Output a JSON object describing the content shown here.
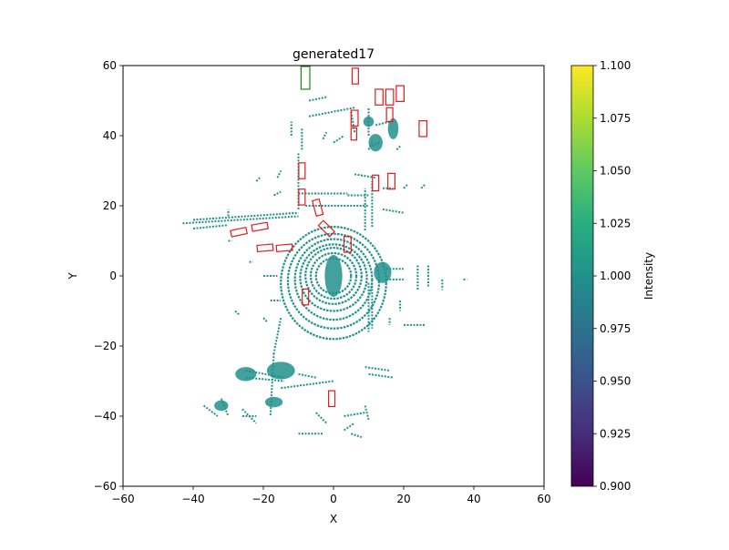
{
  "chart_data": {
    "type": "scatter",
    "title": "generated17",
    "xlabel": "X",
    "ylabel": "Y",
    "xlim": [
      -60,
      60
    ],
    "ylim": [
      -60,
      60
    ],
    "xticks": [
      -60,
      -40,
      -20,
      0,
      20,
      40,
      60
    ],
    "yticks": [
      -60,
      -40,
      -20,
      0,
      20,
      40,
      60
    ],
    "grid": false,
    "point_color": "#21918c",
    "colorbar": {
      "label": "Intensity",
      "range": [
        0.9,
        1.1
      ],
      "ticks": [
        "0.900",
        "0.925",
        "0.950",
        "0.975",
        "1.000",
        "1.025",
        "1.050",
        "1.075",
        "1.100"
      ],
      "colormap": "viridis"
    },
    "rings": [
      {
        "cx": 0,
        "cy": 0,
        "rx": 5,
        "ry": 5
      },
      {
        "cx": 0,
        "cy": 0,
        "rx": 6.5,
        "ry": 6.5
      },
      {
        "cx": 0,
        "cy": 0,
        "rx": 8,
        "ry": 8
      },
      {
        "cx": 0,
        "cy": -0.5,
        "rx": 9.5,
        "ry": 9.5
      },
      {
        "cx": 0,
        "cy": -1,
        "rx": 11,
        "ry": 11.5
      },
      {
        "cx": 0,
        "cy": -1.5,
        "rx": 13,
        "ry": 13.5
      },
      {
        "cx": 0,
        "cy": -2,
        "rx": 15,
        "ry": 16
      }
    ],
    "point_segments": [
      {
        "x1": -43,
        "y1": 15,
        "x2": -10,
        "y2": 17
      },
      {
        "x1": -40,
        "y1": 16,
        "x2": -10,
        "y2": 18
      },
      {
        "x1": -40,
        "y1": 13.5,
        "x2": -30,
        "y2": 14.5
      },
      {
        "x1": -30,
        "y1": 17,
        "x2": -30,
        "y2": 19
      },
      {
        "x1": -10,
        "y1": 19,
        "x2": -10,
        "y2": 35
      },
      {
        "x1": -9,
        "y1": 36,
        "x2": -9,
        "y2": 42
      },
      {
        "x1": -12,
        "y1": 40,
        "x2": -12,
        "y2": 44
      },
      {
        "x1": -7,
        "y1": 45.5,
        "x2": 6,
        "y2": 48
      },
      {
        "x1": -7,
        "y1": 50,
        "x2": -2,
        "y2": 51
      },
      {
        "x1": 4,
        "y1": 23,
        "x2": 10,
        "y2": 23
      },
      {
        "x1": -10,
        "y1": 23.5,
        "x2": 4,
        "y2": 23.5
      },
      {
        "x1": -8,
        "y1": 20,
        "x2": 10,
        "y2": 20
      },
      {
        "x1": 6,
        "y1": 29,
        "x2": 12,
        "y2": 28
      },
      {
        "x1": 9,
        "y1": 13,
        "x2": 9,
        "y2": 25
      },
      {
        "x1": 11,
        "y1": 14,
        "x2": 11,
        "y2": 27
      },
      {
        "x1": 10,
        "y1": 40,
        "x2": 10,
        "y2": 48
      },
      {
        "x1": 11,
        "y1": 37,
        "x2": 13,
        "y2": 38
      },
      {
        "x1": -15,
        "y1": -12,
        "x2": -17,
        "y2": -22
      },
      {
        "x1": -17,
        "y1": -22,
        "x2": -18,
        "y2": -40
      },
      {
        "x1": -25,
        "y1": -27,
        "x2": -14,
        "y2": -29
      },
      {
        "x1": -25,
        "y1": -29,
        "x2": -14,
        "y2": -30
      },
      {
        "x1": -26,
        "y1": -40,
        "x2": -22,
        "y2": -40
      },
      {
        "x1": -15,
        "y1": -32,
        "x2": 0,
        "y2": -30
      },
      {
        "x1": -10,
        "y1": -28,
        "x2": -5,
        "y2": -29
      },
      {
        "x1": 9,
        "y1": -26,
        "x2": 16,
        "y2": -27
      },
      {
        "x1": 10,
        "y1": -28,
        "x2": 17,
        "y2": -29
      },
      {
        "x1": 3,
        "y1": -40,
        "x2": 9,
        "y2": -39
      },
      {
        "x1": -5,
        "y1": -39,
        "x2": -2,
        "y2": -42
      },
      {
        "x1": 3,
        "y1": -44,
        "x2": 6,
        "y2": -42
      },
      {
        "x1": 9,
        "y1": -37,
        "x2": 10,
        "y2": -41
      },
      {
        "x1": -32,
        "y1": -35,
        "x2": -30,
        "y2": -40
      },
      {
        "x1": -26,
        "y1": -38,
        "x2": -22,
        "y2": -42
      },
      {
        "x1": -10,
        "y1": -45,
        "x2": -3,
        "y2": -45
      },
      {
        "x1": 5,
        "y1": -45,
        "x2": 8,
        "y2": -46
      },
      {
        "x1": -37,
        "y1": -37,
        "x2": -33,
        "y2": -40
      },
      {
        "x1": 10,
        "y1": -2,
        "x2": 10,
        "y2": -16
      },
      {
        "x1": 11,
        "y1": -1,
        "x2": 11,
        "y2": -15
      },
      {
        "x1": 15,
        "y1": 2,
        "x2": 20,
        "y2": 2
      },
      {
        "x1": 15,
        "y1": -1,
        "x2": 20,
        "y2": -1
      },
      {
        "x1": 19,
        "y1": -7,
        "x2": 19,
        "y2": -10
      },
      {
        "x1": 16,
        "y1": -12,
        "x2": 16,
        "y2": -14
      },
      {
        "x1": 20,
        "y1": -14,
        "x2": 26,
        "y2": -14
      },
      {
        "x1": 24,
        "y1": 3,
        "x2": 24,
        "y2": -4
      },
      {
        "x1": 27,
        "y1": 3,
        "x2": 27,
        "y2": -3
      },
      {
        "x1": 31,
        "y1": -1,
        "x2": 31,
        "y2": -4
      },
      {
        "x1": 37,
        "y1": -1,
        "x2": 38,
        "y2": -1
      },
      {
        "x1": 12,
        "y1": 43,
        "x2": 16,
        "y2": 44
      },
      {
        "x1": 10,
        "y1": 36,
        "x2": 11,
        "y2": 38
      },
      {
        "x1": 18,
        "y1": 36,
        "x2": 19,
        "y2": 37
      },
      {
        "x1": 20,
        "y1": 25,
        "x2": 21,
        "y2": 26
      },
      {
        "x1": 14,
        "y1": 25,
        "x2": 17,
        "y2": 25
      },
      {
        "x1": 25,
        "y1": 25,
        "x2": 26,
        "y2": 26
      },
      {
        "x1": 14,
        "y1": 19,
        "x2": 20,
        "y2": 18
      },
      {
        "x1": -30,
        "y1": 10,
        "x2": -29,
        "y2": 10
      },
      {
        "x1": -24,
        "y1": 4,
        "x2": -23,
        "y2": 4
      },
      {
        "x1": -20,
        "y1": 0,
        "x2": -16,
        "y2": 0
      },
      {
        "x1": -18,
        "y1": -7,
        "x2": -15,
        "y2": -7
      },
      {
        "x1": -28,
        "y1": -10,
        "x2": -27,
        "y2": -11
      },
      {
        "x1": -20,
        "y1": -12,
        "x2": -19,
        "y2": -13
      },
      {
        "x1": -17,
        "y1": 23,
        "x2": -15,
        "y2": 24
      },
      {
        "x1": -22,
        "y1": 27,
        "x2": -21,
        "y2": 28
      },
      {
        "x1": -16,
        "y1": 28,
        "x2": -15,
        "y2": 30
      },
      {
        "x1": 6,
        "y1": 41,
        "x2": 5,
        "y2": 47
      },
      {
        "x1": 0,
        "y1": 38,
        "x2": 3,
        "y2": 40
      },
      {
        "x1": -3,
        "y1": 39,
        "x2": -2,
        "y2": 41
      }
    ],
    "point_blobs": [
      {
        "x": 0,
        "y": 0,
        "rx": 2.5,
        "ry": 6
      },
      {
        "x": -15,
        "y": -27,
        "rx": 4,
        "ry": 2.5
      },
      {
        "x": -25,
        "y": -28,
        "rx": 3,
        "ry": 2
      },
      {
        "x": -32,
        "y": -37,
        "rx": 2,
        "ry": 1.5
      },
      {
        "x": -17,
        "y": -36,
        "rx": 2.5,
        "ry": 1.5
      },
      {
        "x": 14,
        "y": 1,
        "rx": 2.5,
        "ry": 3
      },
      {
        "x": 17,
        "y": 42,
        "rx": 1.5,
        "ry": 3
      },
      {
        "x": 12,
        "y": 38,
        "rx": 2,
        "ry": 2.5
      },
      {
        "x": 10,
        "y": 44,
        "rx": 1.5,
        "ry": 1.5
      }
    ],
    "boxes_red": [
      {
        "cx": 6.2,
        "cy": 57,
        "w": 1.8,
        "h": 4.5,
        "angle": 0
      },
      {
        "cx": 13,
        "cy": 51,
        "w": 2.2,
        "h": 4.5,
        "angle": 0
      },
      {
        "cx": 16,
        "cy": 51,
        "w": 2.2,
        "h": 4.5,
        "angle": 0
      },
      {
        "cx": 19,
        "cy": 52,
        "w": 2.2,
        "h": 4.5,
        "angle": 0
      },
      {
        "cx": 6,
        "cy": 45,
        "w": 2,
        "h": 4.5,
        "angle": 0
      },
      {
        "cx": 16,
        "cy": 46,
        "w": 1.8,
        "h": 4,
        "angle": 0
      },
      {
        "cx": 25.5,
        "cy": 42,
        "w": 2.2,
        "h": 4.5,
        "angle": 0
      },
      {
        "cx": 5.8,
        "cy": 40.5,
        "w": 1.6,
        "h": 3.5,
        "angle": 0
      },
      {
        "cx": -9,
        "cy": 30,
        "w": 1.8,
        "h": 4.5,
        "angle": 0
      },
      {
        "cx": 12,
        "cy": 26.5,
        "w": 1.8,
        "h": 4.5,
        "angle": 0
      },
      {
        "cx": 16.5,
        "cy": 27,
        "w": 2,
        "h": 4.5,
        "angle": 0
      },
      {
        "cx": -9,
        "cy": 22.5,
        "w": 1.8,
        "h": 4.5,
        "angle": 0
      },
      {
        "cx": -4.5,
        "cy": 19.5,
        "w": 2,
        "h": 4.5,
        "angle": 15
      },
      {
        "cx": -2,
        "cy": 13.5,
        "w": 2,
        "h": 4.5,
        "angle": 45
      },
      {
        "cx": -21,
        "cy": 14,
        "w": 4.5,
        "h": 1.8,
        "angle": 10
      },
      {
        "cx": -27,
        "cy": 12.5,
        "w": 4.5,
        "h": 1.8,
        "angle": 12
      },
      {
        "cx": 4,
        "cy": 9,
        "w": 2,
        "h": 4.5,
        "angle": 0
      },
      {
        "cx": -19.5,
        "cy": 8,
        "w": 4.5,
        "h": 1.8,
        "angle": 5
      },
      {
        "cx": -14,
        "cy": 8,
        "w": 4.5,
        "h": 1.8,
        "angle": 5
      },
      {
        "cx": -8,
        "cy": -6,
        "w": 1.8,
        "h": 4.5,
        "angle": 0
      },
      {
        "cx": -0.5,
        "cy": -35,
        "w": 1.8,
        "h": 4.5,
        "angle": 0
      }
    ],
    "boxes_green": [
      {
        "cx": -8,
        "cy": 56.5,
        "w": 2.5,
        "h": 6.5,
        "angle": 0
      }
    ]
  }
}
